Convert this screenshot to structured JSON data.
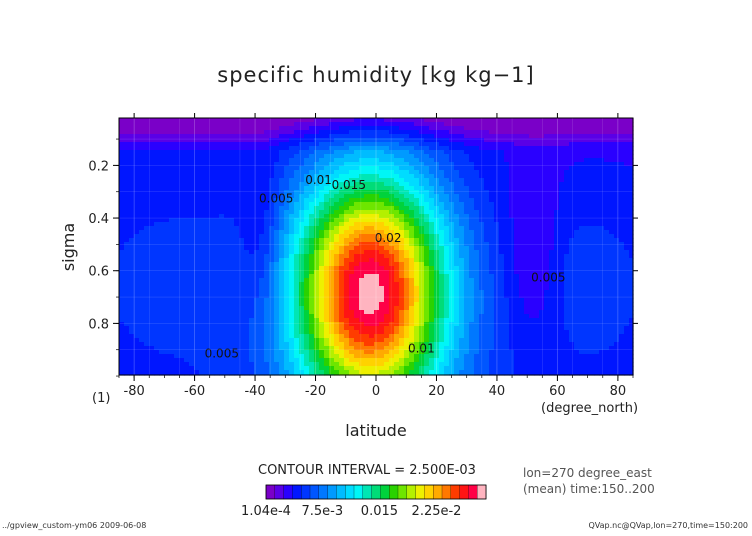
{
  "chart_data": {
    "type": "contour",
    "title": "specific humidity [kg kg−1]",
    "xlabel": "latitude",
    "ylabel": "sigma",
    "x_units": "(degree_north)",
    "y_units": "(1)",
    "xlim": [
      -85,
      85
    ],
    "ylim": [
      0.996,
      0.02
    ],
    "x_ticks": [
      -80,
      -60,
      -40,
      -20,
      0,
      20,
      40,
      60,
      80
    ],
    "y_ticks": [
      0.2,
      0.4,
      0.6,
      0.8
    ],
    "contour_interval_text": "CONTOUR INTERVAL = 2.500E-03",
    "min_value": 0.000104,
    "peak": {
      "lat": -2,
      "sigma": 0.68,
      "value": 0.028
    },
    "contour_labels": [
      {
        "text": "0.005",
        "lat": -33,
        "sigma": 0.34
      },
      {
        "text": "0.01",
        "lat": -19,
        "sigma": 0.27
      },
      {
        "text": "0.015",
        "lat": -9,
        "sigma": 0.29
      },
      {
        "text": "0.02",
        "lat": 4,
        "sigma": 0.49
      },
      {
        "text": "0.005",
        "lat": 57,
        "sigma": 0.64
      },
      {
        "text": "0.005",
        "lat": -51,
        "sigma": 0.93
      },
      {
        "text": "0.01",
        "lat": 15,
        "sigma": 0.91
      }
    ],
    "info_line1": "lon=270 degree_east",
    "info_line2": "(mean) time:150..200",
    "colorbar": {
      "labels": [
        "1.04e-4",
        "7.5e-3",
        "0.015",
        "2.25e-2"
      ],
      "label_values": [
        0.000104,
        0.0075,
        0.015,
        0.0225
      ],
      "min": 0.000104,
      "max": 0.029,
      "colors": [
        "#7a00c8",
        "#5a00e6",
        "#2a00ff",
        "#0016ff",
        "#0036ff",
        "#0056ff",
        "#0078ff",
        "#009aff",
        "#00bcff",
        "#00dcff",
        "#00f6f6",
        "#00e6b4",
        "#00dc78",
        "#00d23c",
        "#2ad200",
        "#6ee600",
        "#b4f000",
        "#eef000",
        "#ffd200",
        "#ffaa00",
        "#ff7800",
        "#ff3c00",
        "#ff1414",
        "#ff0046",
        "#ffb4c0"
      ]
    },
    "footer_left": "../gpview_custom-ym06  2009-06-08",
    "footer_right": "QVap.nc@QVap,lon=270,time=150:200"
  }
}
